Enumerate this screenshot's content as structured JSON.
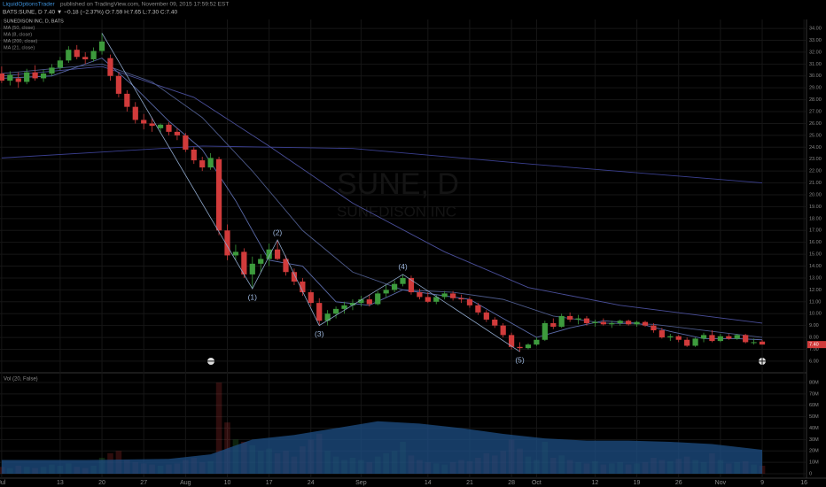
{
  "header": {
    "author": "LiquidOptionsTrader",
    "published": "published on TradingView.com, November 09, 2015 17:59:52 EST",
    "quote": "BATS:SUNE, D 7.40 ▼ −0.18 (−2.37%) O:7.59 H:7.65 L:7.30 C:7.40"
  },
  "chart_data": {
    "type": "candlestick",
    "legend": [
      "SUNEDISON INC, D, BATS",
      "MA (50, close)",
      "MA (8, close)",
      "MA (200, close)",
      "MA (21, close)"
    ],
    "watermark": "SUNE, D",
    "watermark_sub": "SUNEDISON INC",
    "last_price_label": "7.40",
    "up_color": "#3d9b3d",
    "down_color": "#d13b3b",
    "xlim": [
      -0.2,
      96.3
    ],
    "xticks": [
      {
        "value": 0,
        "label": "Jul"
      },
      {
        "value": 7,
        "label": "13"
      },
      {
        "value": 12,
        "label": "20"
      },
      {
        "value": 17,
        "label": "27"
      },
      {
        "value": 22,
        "label": "Aug"
      },
      {
        "value": 27,
        "label": "10"
      },
      {
        "value": 32,
        "label": "17"
      },
      {
        "value": 37,
        "label": "24"
      },
      {
        "value": 43,
        "label": "Sep"
      },
      {
        "value": 51,
        "label": "14"
      },
      {
        "value": 56,
        "label": "21"
      },
      {
        "value": 61,
        "label": "28"
      },
      {
        "value": 64,
        "label": "Oct"
      },
      {
        "value": 71,
        "label": "12"
      },
      {
        "value": 76,
        "label": "19"
      },
      {
        "value": 81,
        "label": "26"
      },
      {
        "value": 86,
        "label": "Nov"
      },
      {
        "value": 91,
        "label": "9"
      },
      {
        "value": 96,
        "label": "16"
      }
    ],
    "ylim": [
      5.1,
      34.75
    ],
    "yticks": [
      {
        "value": 6,
        "label": "6.00"
      },
      {
        "value": 7,
        "label": "7.00"
      },
      {
        "value": 8,
        "label": "8.00"
      },
      {
        "value": 9,
        "label": "9.00"
      },
      {
        "value": 10,
        "label": "10.00"
      },
      {
        "value": 11,
        "label": "11.00"
      },
      {
        "value": 12,
        "label": "12.00"
      },
      {
        "value": 13,
        "label": "13.00"
      },
      {
        "value": 14,
        "label": "14.00"
      },
      {
        "value": 15,
        "label": "15.00"
      },
      {
        "value": 16,
        "label": "16.00"
      },
      {
        "value": 17,
        "label": "17.00"
      },
      {
        "value": 18,
        "label": "18.00"
      },
      {
        "value": 19,
        "label": "19.00"
      },
      {
        "value": 20,
        "label": "20.00"
      },
      {
        "value": 21,
        "label": "21.00"
      },
      {
        "value": 22,
        "label": "22.00"
      },
      {
        "value": 23,
        "label": "23.00"
      },
      {
        "value": 24,
        "label": "24.00"
      },
      {
        "value": 25,
        "label": "25.00"
      },
      {
        "value": 26,
        "label": "26.00"
      },
      {
        "value": 27,
        "label": "27.00"
      },
      {
        "value": 28,
        "label": "28.00"
      },
      {
        "value": 29,
        "label": "29.00"
      },
      {
        "value": 30,
        "label": "30.00"
      },
      {
        "value": 31,
        "label": "31.00"
      },
      {
        "value": 32,
        "label": "32.00"
      },
      {
        "value": 33,
        "label": "33.00"
      },
      {
        "value": 34,
        "label": "34.00"
      }
    ],
    "grid": true,
    "values": [
      [
        30.2,
        30.8,
        29.4,
        29.6
      ],
      [
        29.6,
        30.4,
        29.2,
        30.1
      ],
      [
        29.8,
        30.3,
        29.0,
        29.5
      ],
      [
        29.5,
        30.6,
        29.3,
        30.3
      ],
      [
        30.3,
        30.9,
        29.6,
        29.8
      ],
      [
        29.8,
        30.5,
        29.5,
        30.2
      ],
      [
        30.2,
        31.0,
        30.0,
        30.7
      ],
      [
        30.7,
        31.6,
        30.5,
        31.3
      ],
      [
        31.3,
        32.5,
        31.1,
        32.2
      ],
      [
        32.2,
        32.6,
        31.4,
        31.6
      ],
      [
        31.6,
        32.0,
        31.0,
        31.4
      ],
      [
        31.4,
        32.4,
        31.2,
        32.1
      ],
      [
        32.1,
        33.6,
        31.8,
        32.9
      ],
      [
        31.5,
        31.8,
        29.6,
        30.0
      ],
      [
        30.0,
        30.3,
        28.2,
        28.5
      ],
      [
        28.5,
        28.8,
        27.0,
        27.4
      ],
      [
        27.4,
        27.8,
        26.0,
        26.3
      ],
      [
        26.3,
        26.8,
        25.5,
        26.0
      ],
      [
        26.0,
        26.5,
        25.3,
        25.8
      ],
      [
        25.6,
        26.0,
        25.2,
        25.9
      ],
      [
        25.9,
        26.1,
        25.0,
        25.3
      ],
      [
        25.3,
        25.6,
        24.6,
        25.0
      ],
      [
        25.0,
        25.2,
        23.6,
        23.8
      ],
      [
        23.8,
        24.0,
        22.6,
        22.9
      ],
      [
        22.9,
        23.2,
        22.0,
        22.3
      ],
      [
        22.3,
        23.5,
        22.1,
        23.1
      ],
      [
        23.0,
        23.2,
        16.6,
        17.0
      ],
      [
        17.0,
        17.5,
        14.5,
        14.9
      ],
      [
        14.9,
        15.8,
        14.5,
        15.2
      ],
      [
        15.2,
        15.5,
        13.0,
        13.3
      ],
      [
        13.3,
        14.8,
        12.1,
        14.2
      ],
      [
        14.2,
        15.0,
        13.5,
        14.6
      ],
      [
        14.6,
        15.9,
        14.0,
        15.4
      ],
      [
        15.4,
        16.2,
        14.5,
        14.6
      ],
      [
        14.6,
        14.9,
        13.2,
        13.5
      ],
      [
        13.5,
        13.8,
        12.4,
        12.7
      ],
      [
        12.7,
        13.0,
        11.5,
        11.8
      ],
      [
        11.8,
        12.0,
        10.6,
        10.9
      ],
      [
        10.9,
        11.3,
        9.0,
        9.4
      ],
      [
        9.4,
        10.3,
        9.0,
        10.0
      ],
      [
        10.0,
        10.6,
        9.6,
        10.4
      ],
      [
        10.4,
        11.0,
        10.0,
        10.7
      ],
      [
        10.7,
        11.2,
        10.3,
        10.9
      ],
      [
        10.9,
        11.5,
        10.6,
        11.2
      ],
      [
        11.2,
        11.6,
        10.6,
        10.8
      ],
      [
        10.8,
        11.9,
        10.7,
        11.7
      ],
      [
        11.7,
        12.4,
        11.4,
        12.0
      ],
      [
        12.0,
        12.8,
        11.8,
        12.5
      ],
      [
        12.5,
        13.3,
        12.3,
        13.0
      ],
      [
        13.0,
        13.2,
        11.6,
        11.8
      ],
      [
        11.8,
        12.1,
        11.2,
        11.4
      ],
      [
        11.4,
        11.8,
        10.9,
        11.0
      ],
      [
        11.0,
        11.6,
        10.8,
        11.4
      ],
      [
        11.4,
        11.9,
        11.2,
        11.7
      ],
      [
        11.7,
        11.9,
        11.1,
        11.3
      ],
      [
        11.3,
        11.6,
        10.9,
        11.2
      ],
      [
        11.2,
        11.4,
        10.5,
        10.7
      ],
      [
        10.7,
        10.9,
        9.9,
        10.1
      ],
      [
        10.1,
        10.3,
        9.3,
        9.5
      ],
      [
        9.5,
        9.7,
        8.8,
        9.0
      ],
      [
        9.0,
        9.2,
        8.0,
        8.2
      ],
      [
        8.2,
        8.4,
        7.0,
        7.2
      ],
      [
        7.2,
        7.6,
        6.8,
        7.1
      ],
      [
        7.1,
        7.5,
        7.0,
        7.4
      ],
      [
        7.4,
        8.0,
        7.3,
        7.8
      ],
      [
        7.8,
        9.4,
        7.7,
        9.2
      ],
      [
        9.2,
        9.6,
        8.7,
        8.9
      ],
      [
        8.9,
        10.0,
        8.8,
        9.8
      ],
      [
        9.8,
        10.1,
        9.3,
        9.5
      ],
      [
        9.5,
        9.9,
        9.1,
        9.6
      ],
      [
        9.6,
        9.8,
        9.0,
        9.2
      ],
      [
        9.2,
        9.5,
        8.9,
        9.3
      ],
      [
        9.3,
        9.6,
        9.0,
        9.1
      ],
      [
        9.1,
        9.4,
        8.8,
        9.2
      ],
      [
        9.2,
        9.5,
        9.0,
        9.4
      ],
      [
        9.4,
        9.5,
        9.0,
        9.1
      ],
      [
        9.1,
        9.4,
        8.9,
        9.3
      ],
      [
        9.3,
        9.4,
        8.9,
        9.0
      ],
      [
        9.0,
        9.2,
        8.4,
        8.6
      ],
      [
        8.6,
        8.8,
        7.9,
        8.0
      ],
      [
        8.0,
        8.3,
        7.7,
        8.1
      ],
      [
        8.1,
        8.2,
        7.6,
        7.8
      ],
      [
        7.8,
        8.0,
        7.2,
        7.3
      ],
      [
        7.3,
        8.0,
        7.2,
        7.9
      ],
      [
        7.9,
        8.4,
        7.6,
        8.2
      ],
      [
        8.2,
        8.6,
        7.6,
        7.7
      ],
      [
        7.7,
        8.3,
        7.6,
        8.1
      ],
      [
        8.1,
        8.3,
        7.8,
        7.9
      ],
      [
        7.9,
        8.3,
        7.8,
        8.2
      ],
      [
        8.2,
        8.3,
        7.5,
        7.6
      ],
      [
        7.6,
        7.9,
        7.4,
        7.6
      ],
      [
        7.65,
        7.8,
        7.4,
        7.4
      ]
    ],
    "ma": [
      {
        "name": "MA (200, close)",
        "color": "#3a3f8f",
        "x": [
          0,
          24,
          42,
          63,
          91
        ],
        "values": [
          23.1,
          24.1,
          23.9,
          22.6,
          21.0
        ]
      },
      {
        "name": "MA (50, close)",
        "color": "#4a4f9a",
        "x": [
          0,
          12,
          23,
          32,
          42,
          53,
          63,
          74,
          91
        ],
        "values": [
          30.0,
          30.8,
          28.2,
          24.1,
          19.3,
          15.2,
          12.2,
          10.7,
          9.2
        ]
      },
      {
        "name": "MA (21, close)",
        "color": "#4d5a8a",
        "x": [
          0,
          12,
          18,
          24,
          30,
          36,
          42,
          48,
          54,
          60,
          66,
          72,
          78,
          84,
          91
        ],
        "values": [
          30.2,
          31.0,
          29.5,
          26.5,
          22.0,
          17.0,
          13.5,
          12.0,
          11.8,
          11.2,
          9.8,
          9.2,
          9.1,
          8.6,
          8.0
        ]
      },
      {
        "name": "MA (8, close)",
        "color": "#5a6aa8",
        "x": [
          0,
          6,
          12,
          16,
          20,
          24,
          28,
          32,
          36,
          40,
          44,
          48,
          52,
          56,
          60,
          64,
          68,
          72,
          76,
          80,
          84,
          88,
          91
        ],
        "values": [
          29.8,
          30.0,
          31.5,
          29.0,
          26.2,
          23.8,
          19.5,
          14.5,
          14.0,
          11.0,
          10.7,
          12.0,
          11.6,
          11.2,
          9.6,
          8.0,
          8.8,
          9.4,
          9.2,
          8.5,
          7.9,
          7.9,
          7.8
        ]
      }
    ],
    "wave": {
      "x": [
        12,
        30,
        33,
        38,
        48,
        62
      ],
      "values": [
        33.6,
        12.1,
        16.2,
        9.0,
        13.3,
        6.8
      ],
      "labels": [
        null,
        "(1)",
        "(2)",
        "(3)",
        "(4)",
        "(5)"
      ]
    },
    "volume": {
      "title": "Vol (20, False)",
      "ylim": [
        -3.9,
        87.8
      ],
      "yticks": [
        {
          "value": 0,
          "label": "0"
        },
        {
          "value": 10,
          "label": "10M"
        },
        {
          "value": 20,
          "label": "20M"
        },
        {
          "value": 30,
          "label": "30M"
        },
        {
          "value": 40,
          "label": "40M"
        },
        {
          "value": 50,
          "label": "50M"
        },
        {
          "value": 60,
          "label": "60M"
        },
        {
          "value": 70,
          "label": "70M"
        },
        {
          "value": 80,
          "label": "80M"
        }
      ],
      "values": [
        6,
        5,
        7,
        6,
        5,
        6,
        8,
        7,
        9,
        6,
        5,
        7,
        14,
        18,
        20,
        12,
        10,
        9,
        8,
        7,
        8,
        9,
        12,
        14,
        10,
        11,
        80,
        45,
        30,
        28,
        25,
        20,
        22,
        18,
        20,
        15,
        24,
        30,
        35,
        20,
        15,
        12,
        14,
        12,
        10,
        15,
        18,
        20,
        28,
        16,
        12,
        10,
        9,
        8,
        10,
        12,
        11,
        14,
        18,
        16,
        20,
        30,
        22,
        15,
        12,
        28,
        14,
        16,
        12,
        10,
        9,
        11,
        8,
        9,
        10,
        8,
        9,
        10,
        14,
        12,
        11,
        13,
        15,
        12,
        10,
        18,
        12,
        9,
        10,
        11,
        8,
        7
      ],
      "ma_x": [
        0,
        10,
        20,
        25,
        30,
        35,
        40,
        45,
        50,
        55,
        60,
        65,
        70,
        75,
        80,
        85,
        91
      ],
      "ma_values": [
        12,
        12,
        13,
        17,
        30,
        34,
        40,
        46,
        44,
        40,
        35,
        31,
        29,
        29,
        28,
        26,
        21
      ],
      "ma_color": "#1d4f86"
    }
  }
}
